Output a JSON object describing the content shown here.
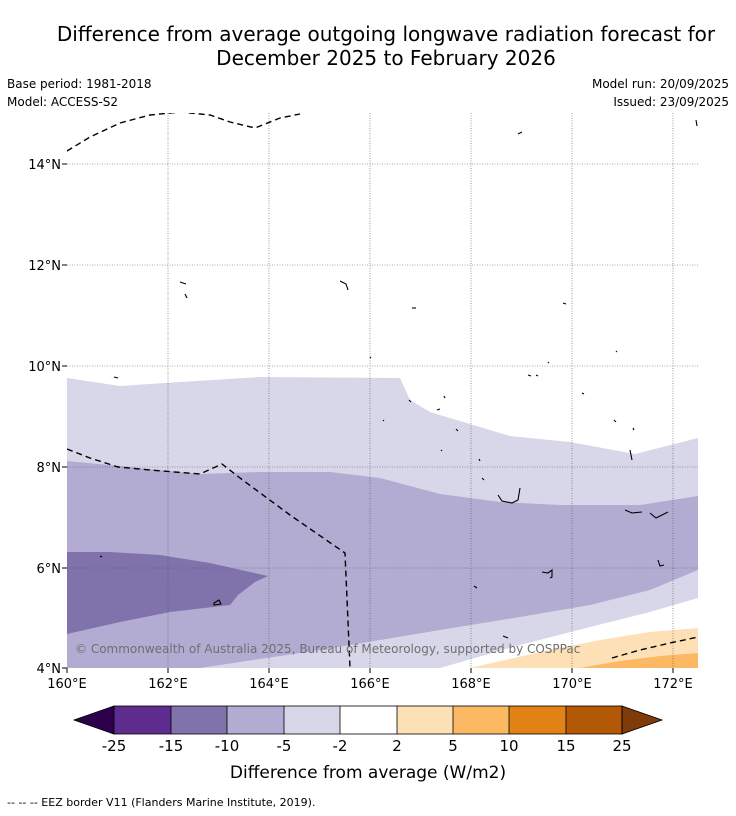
{
  "title": {
    "line1": "Difference from average outgoing longwave radiation forecast for",
    "line2": "December 2025 to February 2026"
  },
  "meta": {
    "base_period": "Base period: 1981-2018",
    "model": "Model: ACCESS-S2",
    "model_run": "Model run: 20/09/2025",
    "issued": "Issued: 23/09/2025"
  },
  "map": {
    "copyright": "© Commonwealth of Australia 2025, Bureau of Meteorology, supported by COSPPac",
    "lat_labels": [
      "14°N",
      "12°N",
      "10°N",
      "8°N",
      "6°N",
      "4°N"
    ],
    "lon_labels": [
      "160°E",
      "162°E",
      "164°E",
      "166°E",
      "168°E",
      "170°E",
      "172°E"
    ]
  },
  "colorbar": {
    "ticks": [
      "-25",
      "-15",
      "-10",
      "-5",
      "-2",
      "2",
      "5",
      "10",
      "15",
      "25"
    ],
    "colors": [
      "#2d004b",
      "#5e2c8f",
      "#8073ac",
      "#b2abd2",
      "#d8d7e9",
      "#ffffff",
      "#fee0b6",
      "#fdb863",
      "#e08214",
      "#b35806",
      "#7f3b08"
    ],
    "label": "Difference from average (W/m2)"
  },
  "footer": "--  --  -- EEZ border V11 (Flanders Marine Institute, 2019)."
}
